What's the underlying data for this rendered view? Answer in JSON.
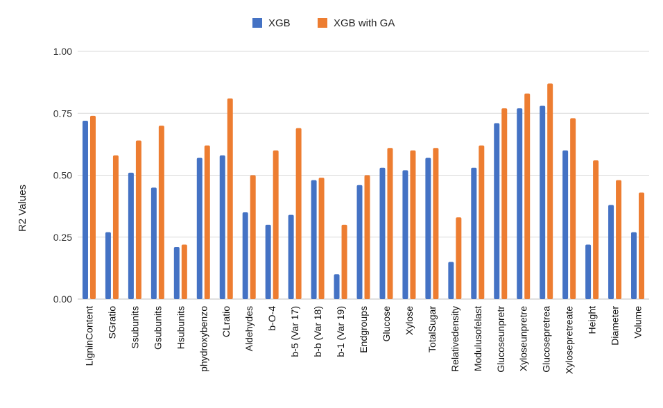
{
  "chart_data": {
    "type": "bar",
    "title": "",
    "xlabel": "",
    "ylabel": "R2 Values",
    "ylim": [
      0,
      1
    ],
    "yticks": [
      "0.00",
      "0.25",
      "0.50",
      "0.75",
      "1.00"
    ],
    "grid": true,
    "legend_position": "top-center",
    "categories": [
      "LigninContent",
      "SGratio",
      "Ssubunits",
      "Gsubunits",
      "Hsubunits",
      "phydroxybenzo",
      "CLratio",
      "Aldehydes",
      "b-O-4",
      "b-5 (Var 17)",
      "b-b (Var 18)",
      "b-1 (Var 19)",
      "Endgroups",
      "Glucose",
      "Xylose",
      "TotalSugar",
      "Relativedensity",
      "Modulusofelast",
      "Glucoseunpretr",
      "Xyloseunpretre",
      "Glucosepretrea",
      "Xylosepretreate",
      "Height",
      "Diameter",
      "Volume"
    ],
    "series": [
      {
        "name": "XGB",
        "color": "#4472C4",
        "values": [
          0.72,
          0.27,
          0.51,
          0.45,
          0.21,
          0.57,
          0.58,
          0.35,
          0.3,
          0.34,
          0.48,
          0.1,
          0.46,
          0.53,
          0.52,
          0.57,
          0.15,
          0.53,
          0.71,
          0.77,
          0.78,
          0.6,
          0.22,
          0.38,
          0.27
        ]
      },
      {
        "name": "XGB with GA",
        "color": "#ED7D31",
        "values": [
          0.74,
          0.58,
          0.64,
          0.7,
          0.22,
          0.62,
          0.81,
          0.5,
          0.6,
          0.69,
          0.49,
          0.3,
          0.5,
          0.61,
          0.6,
          0.61,
          0.33,
          0.62,
          0.77,
          0.83,
          0.87,
          0.73,
          0.56,
          0.48,
          0.43
        ]
      }
    ]
  }
}
